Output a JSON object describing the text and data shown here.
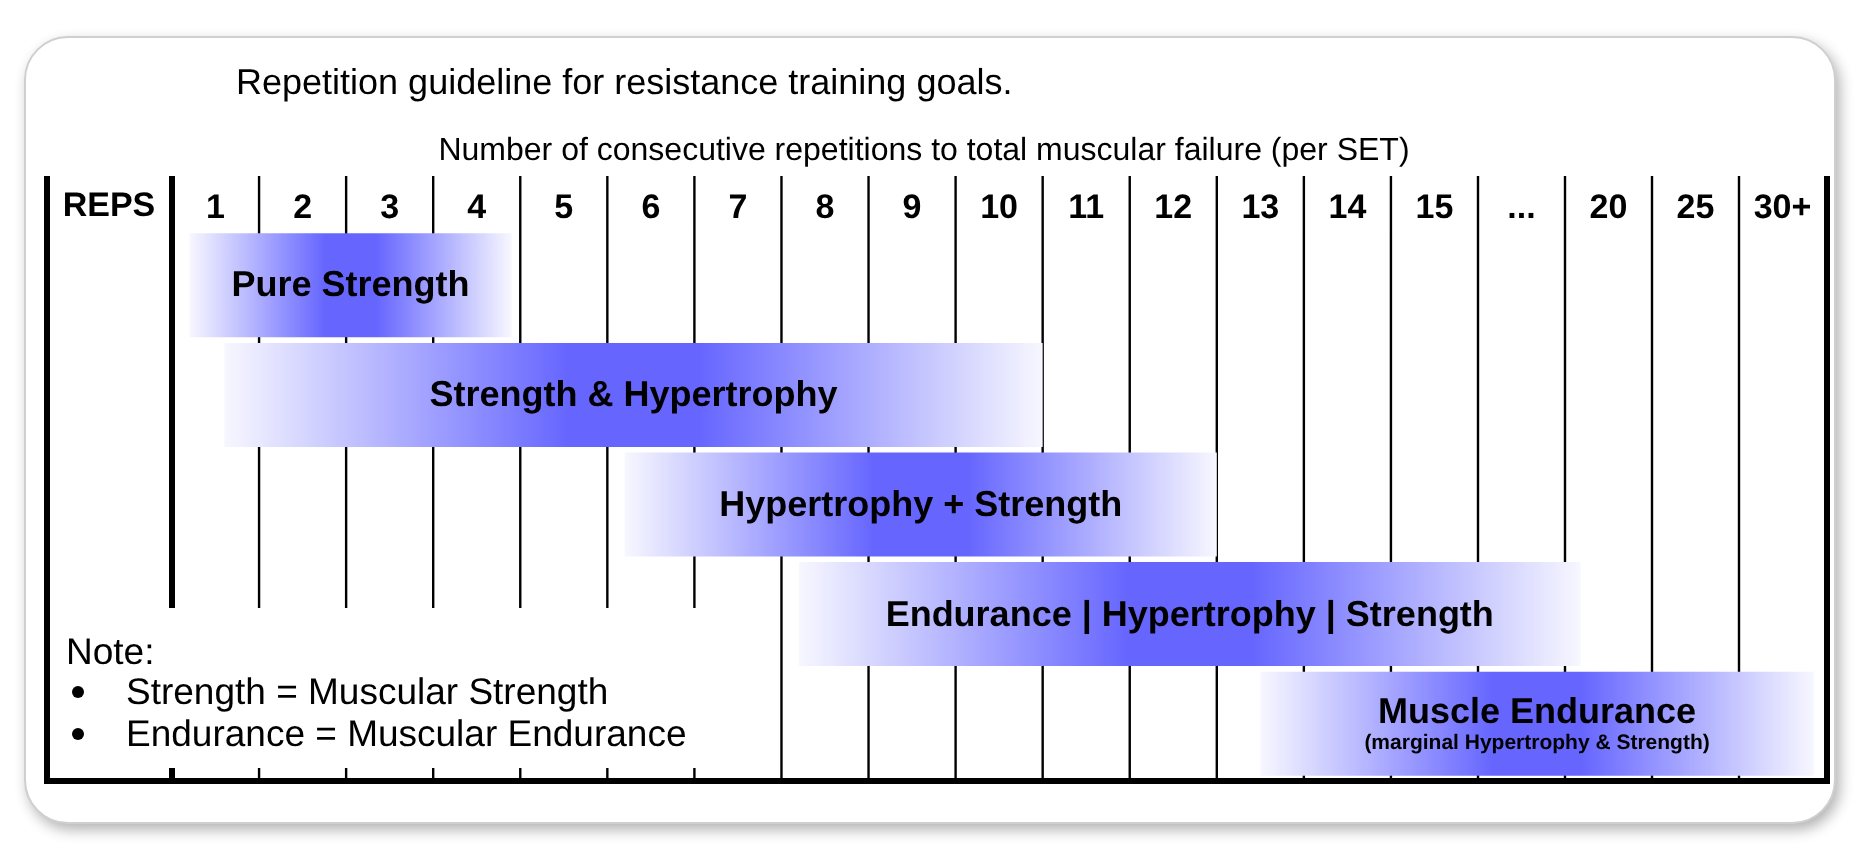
{
  "chart_data": [
    {
      "type": "bar",
      "orientation": "horizontal",
      "title": "Repetition guideline for resistance training goals.",
      "subtitle": "Number of consecutive repetitions to total muscular failure (per SET)",
      "xlabel": "REPS",
      "categories": [
        "Pure Strength",
        "Strength & Hypertrophy",
        "Hypertrophy + Strength",
        "Endurance | Hypertrophy | Strength",
        null
      ],
      "base": [
        0.7,
        1.1,
        5.7,
        7.7,
        13.0
      ],
      "values": [
        3.7,
        9.4,
        6.8,
        7.8,
        2.5
      ],
      "color": "#6666ff",
      "xlim": [
        0.5,
        15.5
      ],
      "xticks": [
        {
          "value": 0.5,
          "label": null
        },
        1,
        {
          "value": 1.5,
          "label": null
        },
        2,
        {
          "value": 2.5,
          "label": null
        },
        3,
        {
          "value": 3.5,
          "label": null
        },
        4,
        {
          "value": 4.5,
          "label": null
        },
        5,
        {
          "value": 5.5,
          "label": null
        },
        6,
        {
          "value": 6.5,
          "label": null
        },
        7,
        {
          "value": 7.5,
          "label": null
        },
        8,
        {
          "value": 8.5,
          "label": null
        },
        9,
        {
          "value": 9.5,
          "label": null
        },
        10,
        {
          "value": 10.5,
          "label": null
        },
        11,
        {
          "value": 11.5,
          "label": null
        },
        12,
        {
          "value": 12.5,
          "label": null
        },
        13,
        {
          "value": 13.5,
          "label": null
        },
        14,
        {
          "value": 14.5,
          "label": null
        },
        15,
        {
          "value": 15.5,
          "label": null
        }
      ],
      "grid": "x",
      "annotations": [
        "Note:",
        "Strength = Muscular Strength",
        "Endurance = Muscular Endurance"
      ]
    },
    {
      "type": "bar",
      "orientation": "horizontal",
      "categories": [
        null,
        null,
        null,
        null,
        "Muscle Endurance\n(marginal Hypertrophy & Strength)"
      ],
      "base": [
        null,
        null,
        null,
        12.5,
        12.5
      ],
      "values": [
        null,
        null,
        null,
        5.9,
        19.3
      ],
      "color": "#6666ff",
      "xlim": [
        12.5,
        32.5
      ],
      "xticks": [
        {
          "value": 15,
          "label": "..."
        },
        {
          "value": 17.5,
          "label": null
        },
        20,
        {
          "value": 22.5,
          "label": null
        },
        25,
        {
          "value": 27.5,
          "label": null
        },
        {
          "value": 30,
          "label": "30+"
        },
        {
          "value": 32.5,
          "label": null
        }
      ],
      "grid": "x"
    }
  ]
}
